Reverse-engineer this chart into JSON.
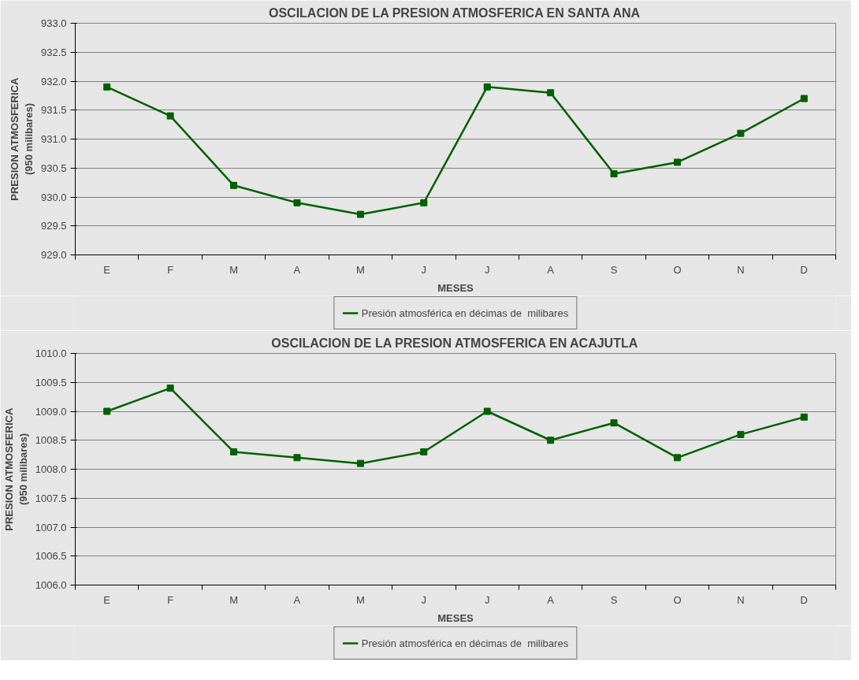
{
  "chart_data": [
    {
      "type": "line",
      "title": "OSCILACION DE LA PRESION ATMOSFERICA EN SANTA ANA",
      "xlabel": "MESES",
      "ylabel": "PRESION ATMOSFERICA\n(950 milibares)",
      "categories": [
        "E",
        "F",
        "M",
        "A",
        "M",
        "J",
        "J",
        "A",
        "S",
        "O",
        "N",
        "D"
      ],
      "series": [
        {
          "name": "Presión atmosférica en décimas de  milibares",
          "color": "#006000",
          "values": [
            931.9,
            931.4,
            930.2,
            929.9,
            929.7,
            929.9,
            931.9,
            931.8,
            930.4,
            930.6,
            931.1,
            931.7
          ]
        }
      ],
      "ylim": [
        929.0,
        933.0
      ],
      "yticks": [
        {
          "value": 929,
          "label": "929.0"
        },
        {
          "value": 929.5,
          "label": "929.5"
        },
        {
          "value": 930,
          "label": "930.0"
        },
        {
          "value": 930.5,
          "label": "930.5"
        },
        {
          "value": 931,
          "label": "931.0"
        },
        {
          "value": 931.5,
          "label": "931.5"
        },
        {
          "value": 932,
          "label": "932.0"
        },
        {
          "value": 932.5,
          "label": "932.5"
        },
        {
          "value": 933,
          "label": "933.0"
        }
      ],
      "grid": "y",
      "legend": "bottom",
      "marker": "square",
      "line_style": "solid"
    },
    {
      "type": "line",
      "title": "OSCILACION DE LA PRESION ATMOSFERICA EN ACAJUTLA",
      "xlabel": "MESES",
      "ylabel": "PRESION ATMOSFERICA\n(950 milibares)",
      "categories": [
        "E",
        "F",
        "M",
        "A",
        "M",
        "J",
        "J",
        "A",
        "S",
        "O",
        "N",
        "D"
      ],
      "series": [
        {
          "name": "Presión atmosférica en décimas de  milibares",
          "color": "#006000",
          "values": [
            1009.0,
            1009.4,
            1008.3,
            1008.2,
            1008.1,
            1008.3,
            1009.0,
            1008.5,
            1008.8,
            1008.2,
            1008.6,
            1008.9
          ]
        }
      ],
      "ylim": [
        1006.0,
        1010.0
      ],
      "yticks": [
        {
          "value": 1006,
          "label": "1006.0"
        },
        {
          "value": 1006.5,
          "label": "1006.5"
        },
        {
          "value": 1007,
          "label": "1007.0"
        },
        {
          "value": 1007.5,
          "label": "1007.5"
        },
        {
          "value": 1008,
          "label": "1008.0"
        },
        {
          "value": 1008.5,
          "label": "1008.5"
        },
        {
          "value": 1009,
          "label": "1009.0"
        },
        {
          "value": 1009.5,
          "label": "1009.5"
        },
        {
          "value": 1010,
          "label": "1010.0"
        }
      ],
      "grid": "y",
      "legend": "bottom",
      "marker": "square",
      "line_style": "solid"
    }
  ]
}
